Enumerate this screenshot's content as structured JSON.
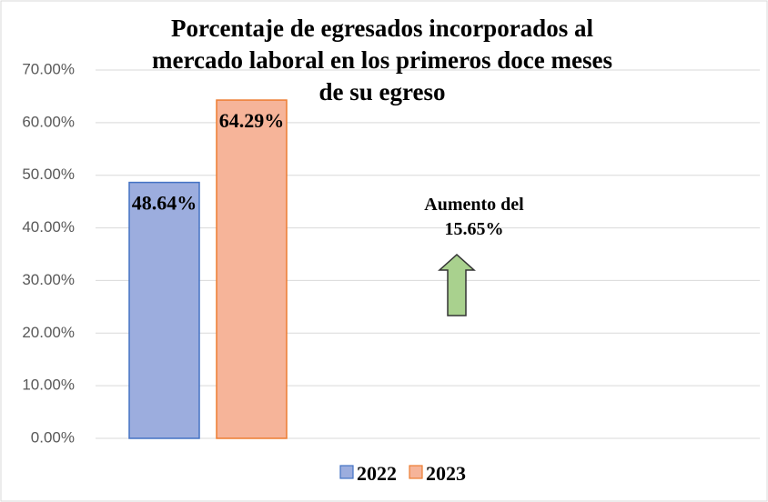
{
  "chart_data": {
    "type": "bar",
    "title": "Porcentaje de egresados incorporados al\nmercado laboral en los primeros doce meses\nde su egreso",
    "categories": [
      null
    ],
    "series": [
      {
        "name": "2022",
        "color": "#9cadde",
        "values": [
          48.64
        ],
        "value_labels": [
          "48.64%"
        ]
      },
      {
        "name": "2023",
        "color": "#f6b499",
        "values": [
          64.29
        ],
        "value_labels": [
          "64.29%"
        ]
      }
    ],
    "annotation": [
      "Aumento del",
      "15.65%"
    ],
    "ylim": [
      0,
      70
    ],
    "yticks": [
      {
        "value": 0,
        "label": "0.00%"
      },
      {
        "value": 10,
        "label": "10.00%"
      },
      {
        "value": 20,
        "label": "20.00%"
      },
      {
        "value": 30,
        "label": "30.00%"
      },
      {
        "value": 40,
        "label": "40.00%"
      },
      {
        "value": 50,
        "label": "50.00%"
      },
      {
        "value": 60,
        "label": "60.00%"
      },
      {
        "value": 70,
        "label": "70.00%"
      }
    ],
    "grid": true,
    "legend": "bottom"
  }
}
